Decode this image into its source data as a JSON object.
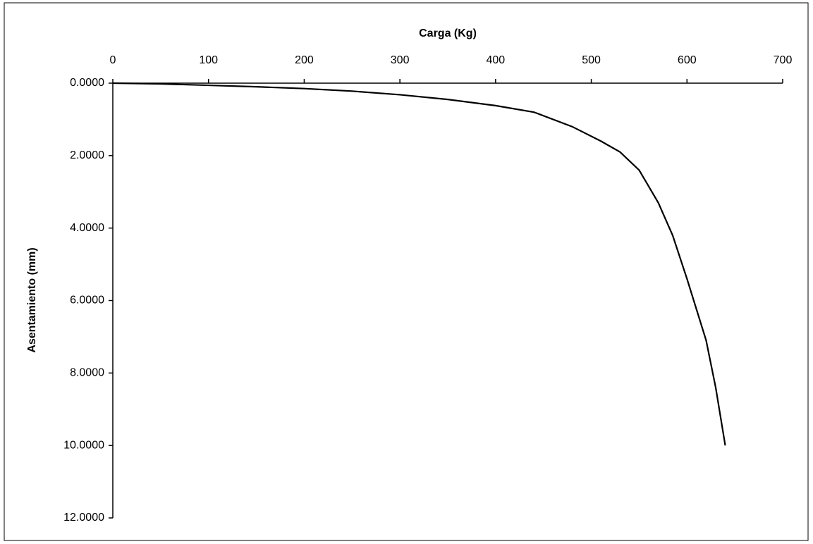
{
  "chart_data": {
    "type": "line",
    "title": "Carga (Kg)",
    "y_label": "Asentamiento (mm)",
    "x": [
      0,
      50,
      100,
      150,
      200,
      250,
      300,
      350,
      400,
      440,
      480,
      510,
      530,
      550,
      570,
      585,
      600,
      620,
      630,
      640
    ],
    "series": [
      {
        "name": "Asentamiento",
        "color": "#000000",
        "values": [
          0,
          0.02,
          0.06,
          0.1,
          0.15,
          0.22,
          0.32,
          0.45,
          0.62,
          0.8,
          1.2,
          1.6,
          1.9,
          2.4,
          3.3,
          4.2,
          5.4,
          7.1,
          8.4,
          10.0
        ]
      }
    ],
    "xlim": [
      0,
      700
    ],
    "xticks": [
      0,
      100,
      200,
      300,
      400,
      500,
      600,
      700
    ],
    "ylim": [
      0,
      12
    ],
    "yticks": [
      {
        "value": 0,
        "label": "0.0000"
      },
      {
        "value": 2,
        "label": "2.0000"
      },
      {
        "value": 4,
        "label": "4.0000"
      },
      {
        "value": 6,
        "label": "6.0000"
      },
      {
        "value": 8,
        "label": "8.0000"
      },
      {
        "value": 10,
        "label": "10.0000"
      },
      {
        "value": 12,
        "label": "12.0000"
      }
    ],
    "y_inverted": true,
    "grid": false
  }
}
